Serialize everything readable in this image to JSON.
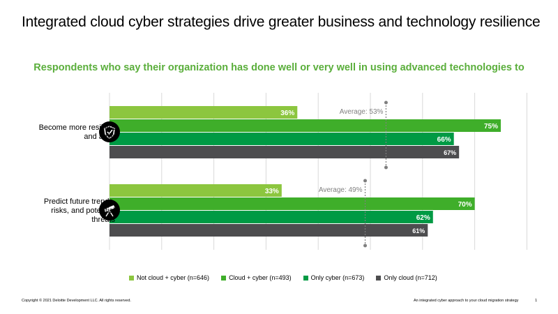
{
  "header": {
    "title": "Integrated cloud cyber strategies drive greater business and technology resilience"
  },
  "chart_data": {
    "type": "bar",
    "orientation": "horizontal",
    "title": "Respondents who say their organization has done well or very well in using advanced technologies to",
    "categories": [
      "Become more resilient and agile",
      "Predict future trends, risks, and potential threats"
    ],
    "category_icons": [
      "shield-check-icon",
      "telescope-icon"
    ],
    "series": [
      {
        "name": "Not cloud + cyber (n=646)",
        "color": "#8cc63f",
        "values": [
          36,
          33
        ]
      },
      {
        "name": "Cloud + cyber (n=493)",
        "color": "#3fae2a",
        "values": [
          75,
          70
        ]
      },
      {
        "name": "Only cyber (n=673)",
        "color": "#009a44",
        "values": [
          66,
          62
        ]
      },
      {
        "name": "Only cloud (n=712)",
        "color": "#4d4d4f",
        "values": [
          67,
          61
        ]
      }
    ],
    "value_labels": [
      [
        "36%",
        "75%",
        "66%",
        "67%"
      ],
      [
        "33%",
        "70%",
        "62%",
        "61%"
      ]
    ],
    "averages": [
      {
        "value": 53,
        "label": "Average: 53%"
      },
      {
        "value": 49,
        "label": "Average: 49%"
      }
    ],
    "xlim": [
      0,
      100
    ],
    "grid": true,
    "legend_position": "bottom"
  },
  "footer": {
    "copyright": "Copyright © 2021 Deloitte Development LLC. All rights reserved.",
    "doc_title": "An integrated cyber approach to your cloud migration strategy",
    "page": "1"
  }
}
